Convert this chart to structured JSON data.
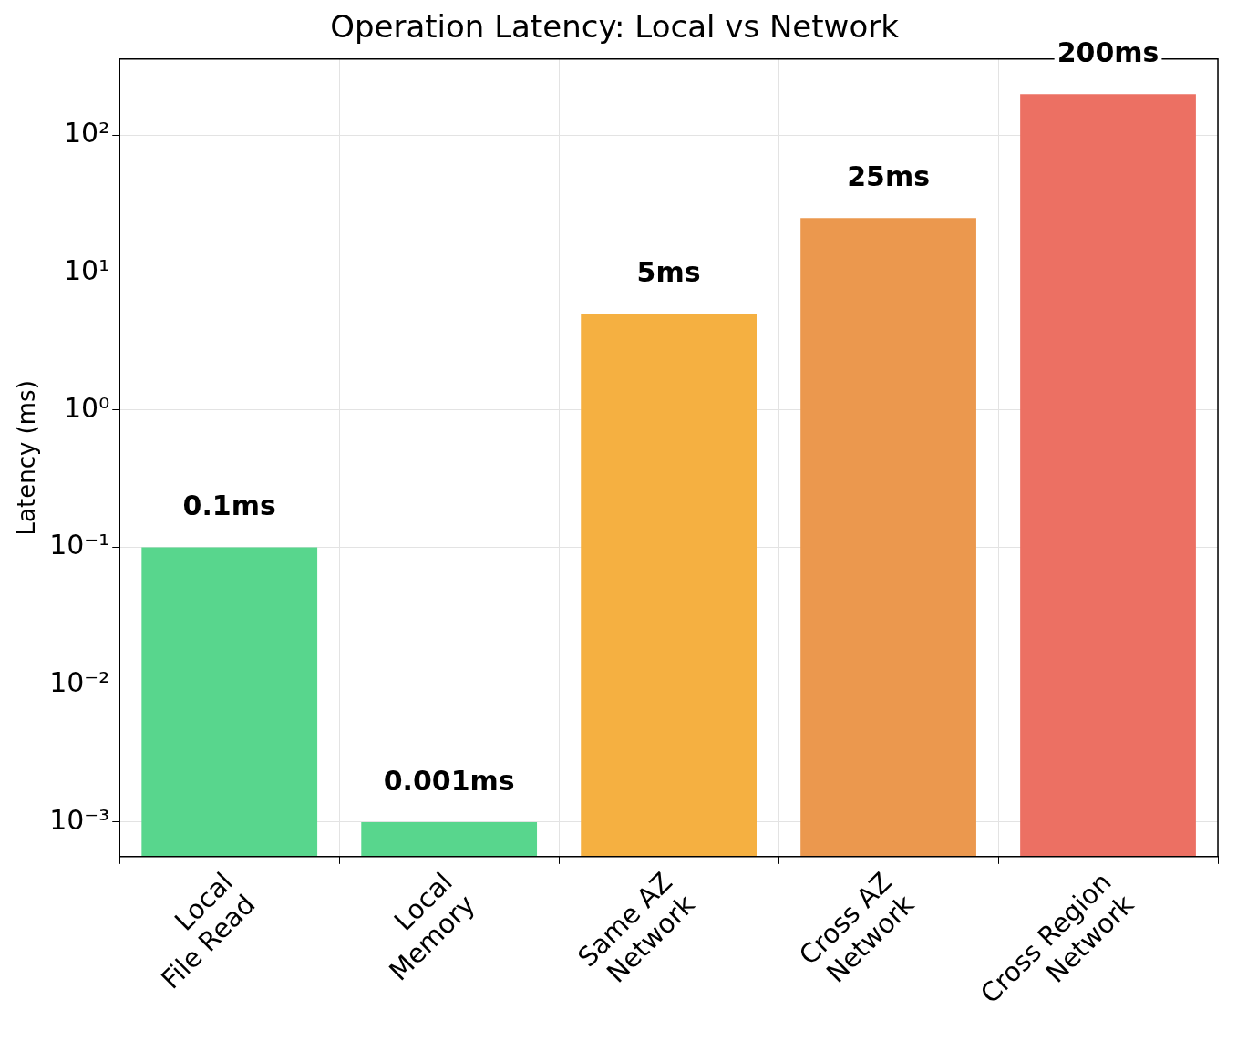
{
  "chart_data": {
    "type": "bar",
    "title": "Operation Latency: Local vs Network",
    "ylabel": "Latency (ms)",
    "categories": [
      "Local\nFile Read",
      "Local\nMemory",
      "Same AZ\nNetwork",
      "Cross AZ\nNetwork",
      "Cross Region\nNetwork"
    ],
    "values": [
      0.1,
      0.001,
      5,
      25,
      200
    ],
    "colors": [
      "#58d68d",
      "#58d68d",
      "#f5b041",
      "#eb984e",
      "#ec7063"
    ],
    "value_labels": [
      "0.1ms",
      "0.001ms",
      "5ms",
      "25ms",
      "200ms"
    ],
    "log": true,
    "ylim": [
      0.00056,
      360
    ],
    "yticks": [
      {
        "value": 0.001,
        "label": "10⁻³"
      },
      {
        "value": 0.01,
        "label": "10⁻²"
      },
      {
        "value": 0.1,
        "label": "10⁻¹"
      },
      {
        "value": 1,
        "label": "10⁰"
      },
      {
        "value": 10,
        "label": "10¹"
      },
      {
        "value": 100,
        "label": "10²"
      }
    ],
    "grid": true
  }
}
